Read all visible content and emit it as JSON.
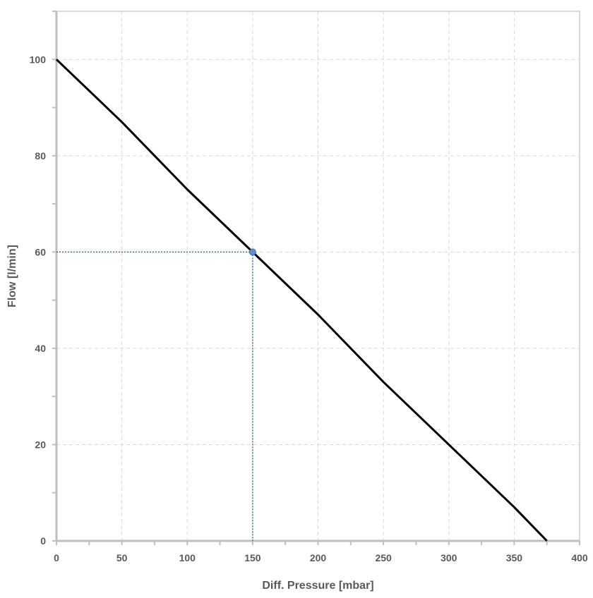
{
  "chart_data": {
    "type": "line",
    "xlabel": "Diff. Pressure [mbar]",
    "ylabel": "Flow [l/min]",
    "xlim": [
      0,
      400
    ],
    "ylim": [
      0,
      110
    ],
    "x_ticks": [
      0,
      50,
      100,
      150,
      200,
      250,
      300,
      350,
      400
    ],
    "y_ticks": [
      0,
      20,
      40,
      60,
      80,
      100
    ],
    "x_minor_step": 25,
    "y_minor_step": 10,
    "grid": true,
    "series": [
      {
        "x": [
          0,
          50,
          100,
          150,
          200,
          250,
          300,
          350,
          375
        ],
        "y": [
          100,
          87,
          73,
          60,
          47,
          33,
          20,
          7,
          0
        ],
        "color": "#000000"
      }
    ],
    "marker": {
      "x": 150,
      "y": 60,
      "color": "#5b8fd0"
    },
    "reference_color": "#2e75b6"
  }
}
